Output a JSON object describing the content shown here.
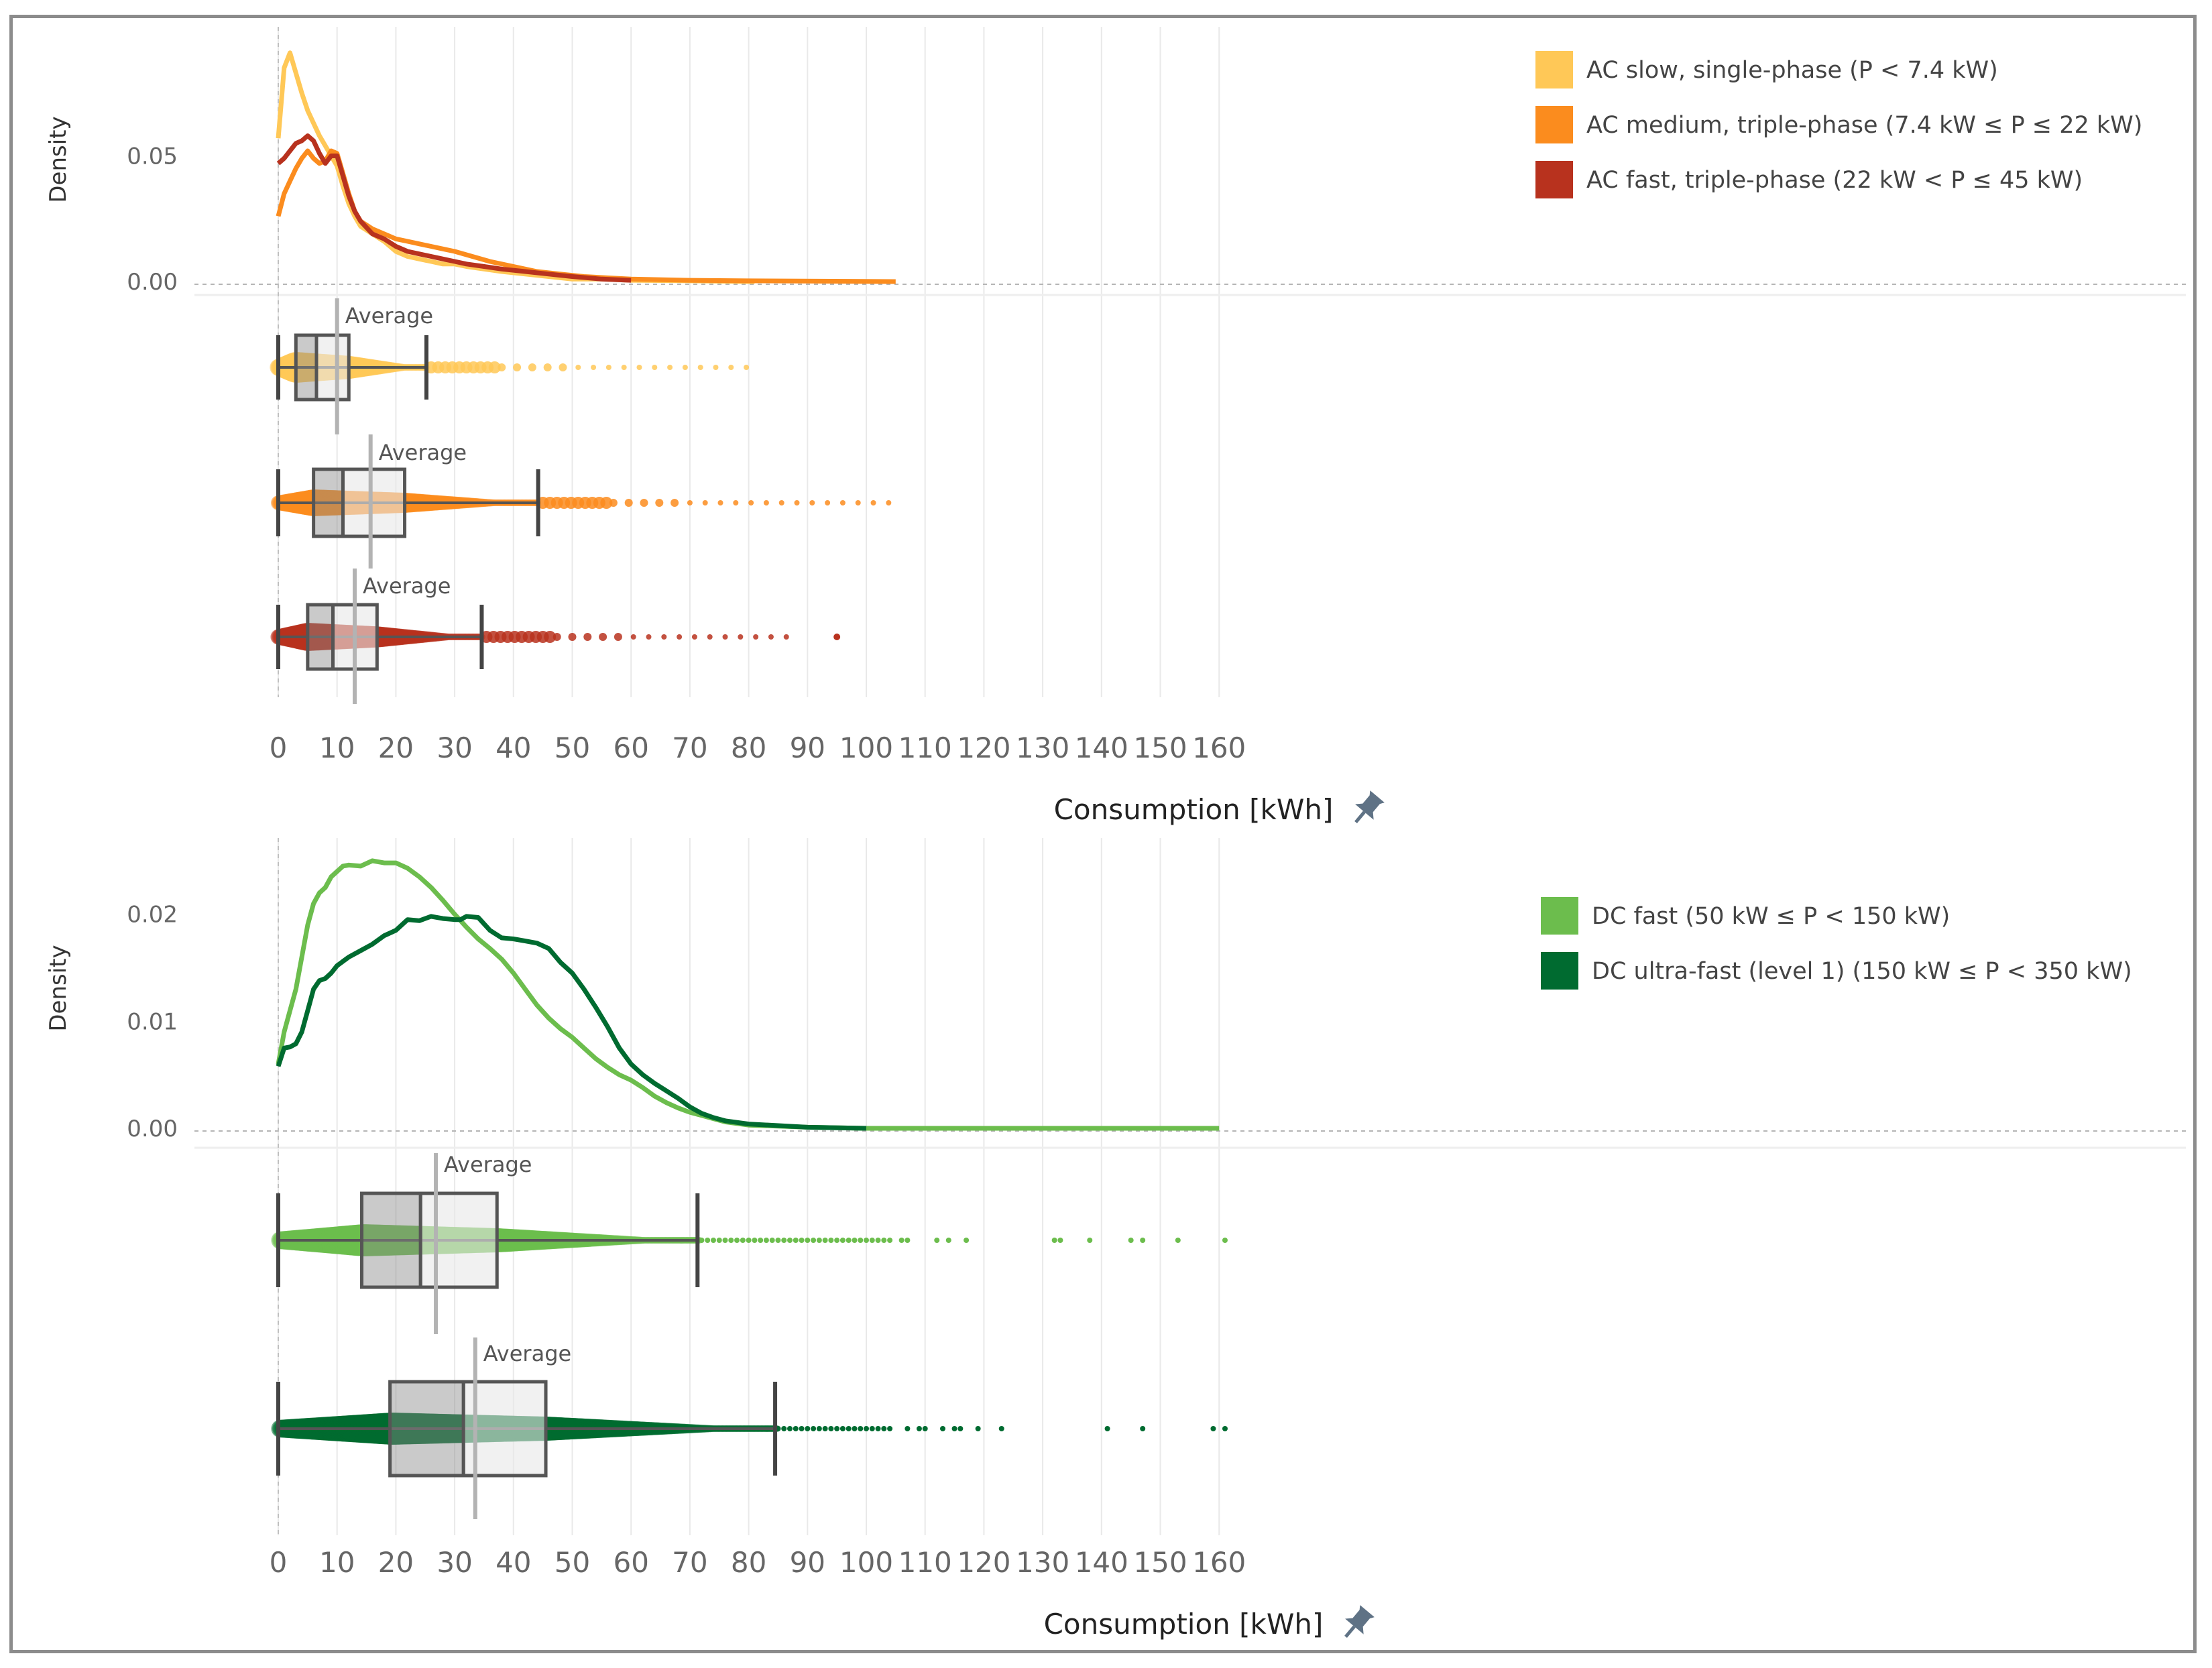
{
  "chart_data": [
    {
      "type": "density + boxplot",
      "ylabel": "Density",
      "xlabel": "Consumption [kWh]",
      "x_ticks": [
        0,
        10,
        20,
        30,
        40,
        50,
        60,
        70,
        80,
        90,
        100,
        110,
        120,
        130,
        140,
        150,
        160
      ],
      "y_ticks": [
        0.0,
        0.05
      ],
      "y_tick_labels": [
        "0.00",
        "0.05"
      ],
      "ylim": [
        0,
        0.104
      ],
      "xlim": [
        0,
        161
      ],
      "average_label": "Average",
      "series": [
        {
          "name": "AC slow, single-phase (P < 7.4 kW)",
          "color": "#ffc857",
          "density": [
            [
              0,
              0.057
            ],
            [
              1,
              0.085
            ],
            [
              2,
              0.091
            ],
            [
              3,
              0.083
            ],
            [
              4,
              0.075
            ],
            [
              5,
              0.068
            ],
            [
              6,
              0.063
            ],
            [
              7,
              0.058
            ],
            [
              8,
              0.054
            ],
            [
              9,
              0.05
            ],
            [
              10,
              0.046
            ],
            [
              11,
              0.038
            ],
            [
              12,
              0.031
            ],
            [
              13,
              0.026
            ],
            [
              14,
              0.022
            ],
            [
              16,
              0.019
            ],
            [
              18,
              0.016
            ],
            [
              20,
              0.012
            ],
            [
              22,
              0.01
            ],
            [
              24,
              0.009
            ],
            [
              26,
              0.008
            ],
            [
              28,
              0.007
            ],
            [
              30,
              0.007
            ],
            [
              32,
              0.006
            ],
            [
              35,
              0.005
            ],
            [
              38,
              0.004
            ],
            [
              42,
              0.003
            ],
            [
              46,
              0.002
            ],
            [
              50,
              0.001
            ],
            [
              55,
              0.001
            ],
            [
              60,
              0.0005
            ],
            [
              70,
              0.0003
            ],
            [
              81,
              0
            ]
          ],
          "box": {
            "min": 0,
            "q1": 3,
            "median": 6.5,
            "q3": 12,
            "max": 25.2,
            "mean": 10
          },
          "outliers_to": 81
        },
        {
          "name": "AC medium, triple-phase (7.4 kW ≤ P ≤ 22 kW)",
          "color": "#fb8c1e",
          "density": [
            [
              0,
              0.026
            ],
            [
              1,
              0.035
            ],
            [
              2,
              0.04
            ],
            [
              3,
              0.045
            ],
            [
              4,
              0.049
            ],
            [
              5,
              0.052
            ],
            [
              6,
              0.049
            ],
            [
              7,
              0.047
            ],
            [
              8,
              0.048
            ],
            [
              9,
              0.052
            ],
            [
              10,
              0.051
            ],
            [
              11,
              0.043
            ],
            [
              12,
              0.035
            ],
            [
              13,
              0.028
            ],
            [
              14,
              0.024
            ],
            [
              16,
              0.021
            ],
            [
              18,
              0.019
            ],
            [
              20,
              0.017
            ],
            [
              22,
              0.016
            ],
            [
              24,
              0.015
            ],
            [
              26,
              0.014
            ],
            [
              28,
              0.013
            ],
            [
              30,
              0.012
            ],
            [
              33,
              0.01
            ],
            [
              36,
              0.008
            ],
            [
              40,
              0.006
            ],
            [
              44,
              0.004
            ],
            [
              48,
              0.003
            ],
            [
              52,
              0.002
            ],
            [
              60,
              0.001
            ],
            [
              70,
              0.0005
            ],
            [
              80,
              0.0003
            ],
            [
              105,
              0
            ]
          ],
          "box": {
            "min": 0,
            "q1": 6,
            "median": 11,
            "q3": 21.5,
            "max": 44.2,
            "mean": 15.7
          },
          "outliers_to": 105
        },
        {
          "name": "AC fast, triple-phase (22 kW < P ≤ 45 kW)",
          "color": "#b8321e",
          "density": [
            [
              0,
              0.047
            ],
            [
              1,
              0.049
            ],
            [
              2,
              0.052
            ],
            [
              3,
              0.055
            ],
            [
              4,
              0.056
            ],
            [
              5,
              0.058
            ],
            [
              6,
              0.056
            ],
            [
              7,
              0.051
            ],
            [
              8,
              0.047
            ],
            [
              9,
              0.05
            ],
            [
              10,
              0.05
            ],
            [
              11,
              0.042
            ],
            [
              12,
              0.034
            ],
            [
              13,
              0.028
            ],
            [
              14,
              0.024
            ],
            [
              16,
              0.019
            ],
            [
              18,
              0.017
            ],
            [
              20,
              0.014
            ],
            [
              22,
              0.012
            ],
            [
              24,
              0.011
            ],
            [
              26,
              0.01
            ],
            [
              28,
              0.009
            ],
            [
              30,
              0.008
            ],
            [
              32,
              0.007
            ],
            [
              35,
              0.006
            ],
            [
              38,
              0.005
            ],
            [
              42,
              0.004
            ],
            [
              46,
              0.003
            ],
            [
              50,
              0.002
            ],
            [
              55,
              0.001
            ],
            [
              60,
              0.0005
            ]
          ],
          "box": {
            "min": 0,
            "q1": 5,
            "median": 9.3,
            "q3": 16.8,
            "max": 34.6,
            "mean": 13
          },
          "outliers_to": 87,
          "extra_outlier": 95
        }
      ]
    },
    {
      "type": "density + boxplot",
      "ylabel": "Density",
      "xlabel": "Consumption [kWh]",
      "x_ticks": [
        0,
        10,
        20,
        30,
        40,
        50,
        60,
        70,
        80,
        90,
        100,
        110,
        120,
        130,
        140,
        150,
        160
      ],
      "y_ticks": [
        0.0,
        0.01,
        0.02
      ],
      "y_tick_labels": [
        "0.00",
        "0.01",
        "0.02"
      ],
      "ylim": [
        0,
        0.027
      ],
      "xlim": [
        0,
        161
      ],
      "average_label": "Average",
      "series": [
        {
          "name": "DC fast (50 kW ≤ P < 150 kW)",
          "color": "#6cbd4d",
          "density": [
            [
              0,
              0.006
            ],
            [
              1,
              0.009
            ],
            [
              2,
              0.011
            ],
            [
              3,
              0.013
            ],
            [
              4,
              0.016
            ],
            [
              5,
              0.019
            ],
            [
              6,
              0.021
            ],
            [
              7,
              0.022
            ],
            [
              8,
              0.0225
            ],
            [
              9,
              0.0235
            ],
            [
              10,
              0.024
            ],
            [
              11,
              0.0245
            ],
            [
              12,
              0.0246
            ],
            [
              14,
              0.0245
            ],
            [
              16,
              0.025
            ],
            [
              18,
              0.0248
            ],
            [
              20,
              0.0248
            ],
            [
              22,
              0.0243
            ],
            [
              24,
              0.0235
            ],
            [
              26,
              0.0225
            ],
            [
              28,
              0.0213
            ],
            [
              30,
              0.02
            ],
            [
              32,
              0.0188
            ],
            [
              34,
              0.0177
            ],
            [
              36,
              0.0168
            ],
            [
              38,
              0.0158
            ],
            [
              40,
              0.0145
            ],
            [
              42,
              0.013
            ],
            [
              44,
              0.0115
            ],
            [
              46,
              0.0103
            ],
            [
              48,
              0.0093
            ],
            [
              50,
              0.0085
            ],
            [
              52,
              0.0075
            ],
            [
              54,
              0.0065
            ],
            [
              56,
              0.0057
            ],
            [
              58,
              0.005
            ],
            [
              60,
              0.0045
            ],
            [
              62,
              0.0038
            ],
            [
              64,
              0.003
            ],
            [
              66,
              0.0024
            ],
            [
              68,
              0.0019
            ],
            [
              70,
              0.0015
            ],
            [
              72,
              0.0012
            ],
            [
              74,
              0.0009
            ],
            [
              76,
              0.0006
            ],
            [
              80,
              0.0003
            ],
            [
              90,
              0.0001
            ],
            [
              100,
              0
            ],
            [
              160,
              0
            ]
          ],
          "box": {
            "min": 0,
            "q1": 14.2,
            "median": 24.2,
            "q3": 37.2,
            "max": 71.3,
            "mean": 26.8
          },
          "outliers": [
            72,
            73,
            74,
            75,
            76,
            77,
            78,
            79,
            80,
            81,
            82,
            83,
            84,
            85,
            86,
            87,
            88,
            89,
            90,
            91,
            92,
            93,
            94,
            95,
            96,
            97,
            98,
            99,
            100,
            101,
            102,
            103,
            104,
            106,
            107,
            112,
            114,
            117,
            132,
            133,
            138,
            145,
            147,
            153,
            161
          ]
        },
        {
          "name": "DC ultra-fast (level 1) (150 kW ≤ P < 350 kW)",
          "color": "#006b30",
          "density": [
            [
              0,
              0.0058
            ],
            [
              1,
              0.0075
            ],
            [
              2,
              0.0076
            ],
            [
              3,
              0.0079
            ],
            [
              4,
              0.009
            ],
            [
              5,
              0.011
            ],
            [
              6,
              0.013
            ],
            [
              7,
              0.0138
            ],
            [
              8,
              0.014
            ],
            [
              9,
              0.0145
            ],
            [
              10,
              0.0152
            ],
            [
              12,
              0.016
            ],
            [
              14,
              0.0166
            ],
            [
              16,
              0.0172
            ],
            [
              18,
              0.018
            ],
            [
              20,
              0.0185
            ],
            [
              22,
              0.0195
            ],
            [
              24,
              0.0194
            ],
            [
              26,
              0.0198
            ],
            [
              28,
              0.0196
            ],
            [
              30,
              0.0195
            ],
            [
              31,
              0.0195
            ],
            [
              32,
              0.0198
            ],
            [
              34,
              0.0197
            ],
            [
              36,
              0.0185
            ],
            [
              38,
              0.0178
            ],
            [
              40,
              0.0177
            ],
            [
              42,
              0.0175
            ],
            [
              44,
              0.0173
            ],
            [
              46,
              0.0168
            ],
            [
              48,
              0.0155
            ],
            [
              50,
              0.0145
            ],
            [
              52,
              0.013
            ],
            [
              54,
              0.0113
            ],
            [
              56,
              0.0095
            ],
            [
              58,
              0.0075
            ],
            [
              60,
              0.006
            ],
            [
              62,
              0.005
            ],
            [
              64,
              0.0042
            ],
            [
              66,
              0.0035
            ],
            [
              68,
              0.0028
            ],
            [
              70,
              0.002
            ],
            [
              72,
              0.0014
            ],
            [
              74,
              0.001
            ],
            [
              76,
              0.0007
            ],
            [
              80,
              0.0004
            ],
            [
              90,
              0.0001
            ],
            [
              100,
              0
            ]
          ],
          "box": {
            "min": 0,
            "q1": 19,
            "median": 31.5,
            "q3": 45.5,
            "max": 84.5,
            "mean": 33.5
          },
          "outliers": [
            85,
            86,
            87,
            88,
            89,
            90,
            91,
            92,
            93,
            94,
            95,
            96,
            97,
            98,
            99,
            100,
            101,
            102,
            103,
            104,
            107,
            109,
            110,
            113,
            115,
            116,
            119,
            123,
            141,
            147,
            159,
            161
          ]
        }
      ]
    }
  ]
}
